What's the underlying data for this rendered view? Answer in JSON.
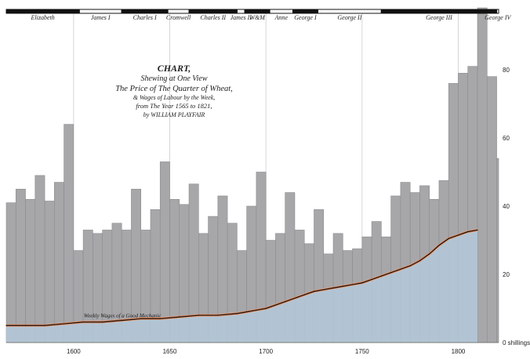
{
  "chart_data": {
    "type": "bar",
    "title_lines": [
      "CHART,",
      "Shewing at One View",
      "The Price of The Quarter of Wheat,",
      "& Wages of Labour by the Week,",
      "from The Year 1565 to 1821,",
      "by WILLIAM PLAYFAIR"
    ],
    "xlim": [
      1565,
      1821
    ],
    "ylim": [
      0,
      100
    ],
    "x_ticks": [
      {
        "value": 1600,
        "label": "1600"
      },
      {
        "value": 1650,
        "label": "1650"
      },
      {
        "value": 1700,
        "label": "1700"
      },
      {
        "value": 1750,
        "label": "1750"
      },
      {
        "value": 1800,
        "label": "1800"
      }
    ],
    "y_ticks": [
      {
        "value": 0,
        "label": "0 shillings"
      },
      {
        "value": 20,
        "label": "20"
      },
      {
        "value": 40,
        "label": "40"
      },
      {
        "value": 60,
        "label": "60"
      },
      {
        "value": 80,
        "label": "80"
      }
    ],
    "wheat": {
      "years": [
        1565,
        1570,
        1575,
        1580,
        1585,
        1590,
        1595,
        1600,
        1605,
        1610,
        1615,
        1620,
        1625,
        1630,
        1635,
        1640,
        1645,
        1650,
        1655,
        1660,
        1665,
        1670,
        1675,
        1680,
        1685,
        1690,
        1695,
        1700,
        1705,
        1710,
        1715,
        1720,
        1725,
        1730,
        1735,
        1740,
        1745,
        1750,
        1755,
        1760,
        1765,
        1770,
        1775,
        1780,
        1785,
        1790,
        1795,
        1800,
        1805,
        1810,
        1815,
        1820
      ],
      "values": [
        41,
        45,
        42,
        49,
        41.5,
        47,
        64,
        27,
        33,
        32,
        33,
        35,
        33,
        45,
        33,
        39,
        53,
        42,
        40.5,
        46.5,
        32,
        37,
        43,
        35,
        27,
        40,
        50,
        30,
        32,
        44,
        33,
        29,
        39,
        26,
        32,
        27,
        27.5,
        31,
        35.5,
        31,
        43,
        47,
        44,
        46,
        42,
        47.5,
        76,
        79,
        81,
        99,
        78,
        54
      ]
    },
    "wages": {
      "years": [
        1565,
        1575,
        1585,
        1595,
        1605,
        1615,
        1625,
        1635,
        1645,
        1655,
        1665,
        1675,
        1685,
        1690,
        1695,
        1700,
        1705,
        1710,
        1715,
        1720,
        1725,
        1730,
        1735,
        1740,
        1745,
        1750,
        1755,
        1760,
        1765,
        1770,
        1775,
        1780,
        1785,
        1790,
        1795,
        1800,
        1805,
        1810
      ],
      "values": [
        5,
        5,
        5,
        5.5,
        6,
        6,
        6.5,
        7,
        7,
        7.5,
        8,
        8,
        8.5,
        9,
        9.5,
        10,
        11,
        12,
        13,
        14,
        15,
        15.5,
        16,
        16.5,
        17,
        17.5,
        18.5,
        19.5,
        20.5,
        21.5,
        22.5,
        24,
        26,
        28.5,
        30.5,
        31.5,
        32.5,
        33
      ]
    },
    "wage_label": "Weekly Wages of a Good Mechanic",
    "reigns": [
      {
        "name": "Elizabeth",
        "start": 1565,
        "end": 1603,
        "fill": "#111111"
      },
      {
        "name": "James I",
        "start": 1603,
        "end": 1625,
        "fill": "#ffffff"
      },
      {
        "name": "Charles I",
        "start": 1625,
        "end": 1649,
        "fill": "#111111"
      },
      {
        "name": "Cromwell",
        "start": 1649,
        "end": 1660,
        "fill": "#ffffff"
      },
      {
        "name": "Charles II",
        "start": 1660,
        "end": 1685,
        "fill": "#111111"
      },
      {
        "name": "James II",
        "start": 1685,
        "end": 1689,
        "fill": "#ffffff"
      },
      {
        "name": "W&M",
        "start": 1689,
        "end": 1702,
        "fill": "#111111"
      },
      {
        "name": "Anne",
        "start": 1702,
        "end": 1714,
        "fill": "#ffffff"
      },
      {
        "name": "George I",
        "start": 1714,
        "end": 1727,
        "fill": "#111111"
      },
      {
        "name": "George II",
        "start": 1727,
        "end": 1760,
        "fill": "#ffffff"
      },
      {
        "name": "George III",
        "start": 1760,
        "end": 1820,
        "fill": "#111111"
      },
      {
        "name": "George IV",
        "start": 1820,
        "end": 1821,
        "fill": "#ffffff"
      }
    ],
    "colors": {
      "bar_fill": "#a7a7aa",
      "bar_stroke": "#8c8c8f",
      "wage_area": "#b4c9da",
      "wage_line": "#111111",
      "wage_line_under": "#e88a5a",
      "grid": "#d6d6d6"
    },
    "grid": true
  }
}
